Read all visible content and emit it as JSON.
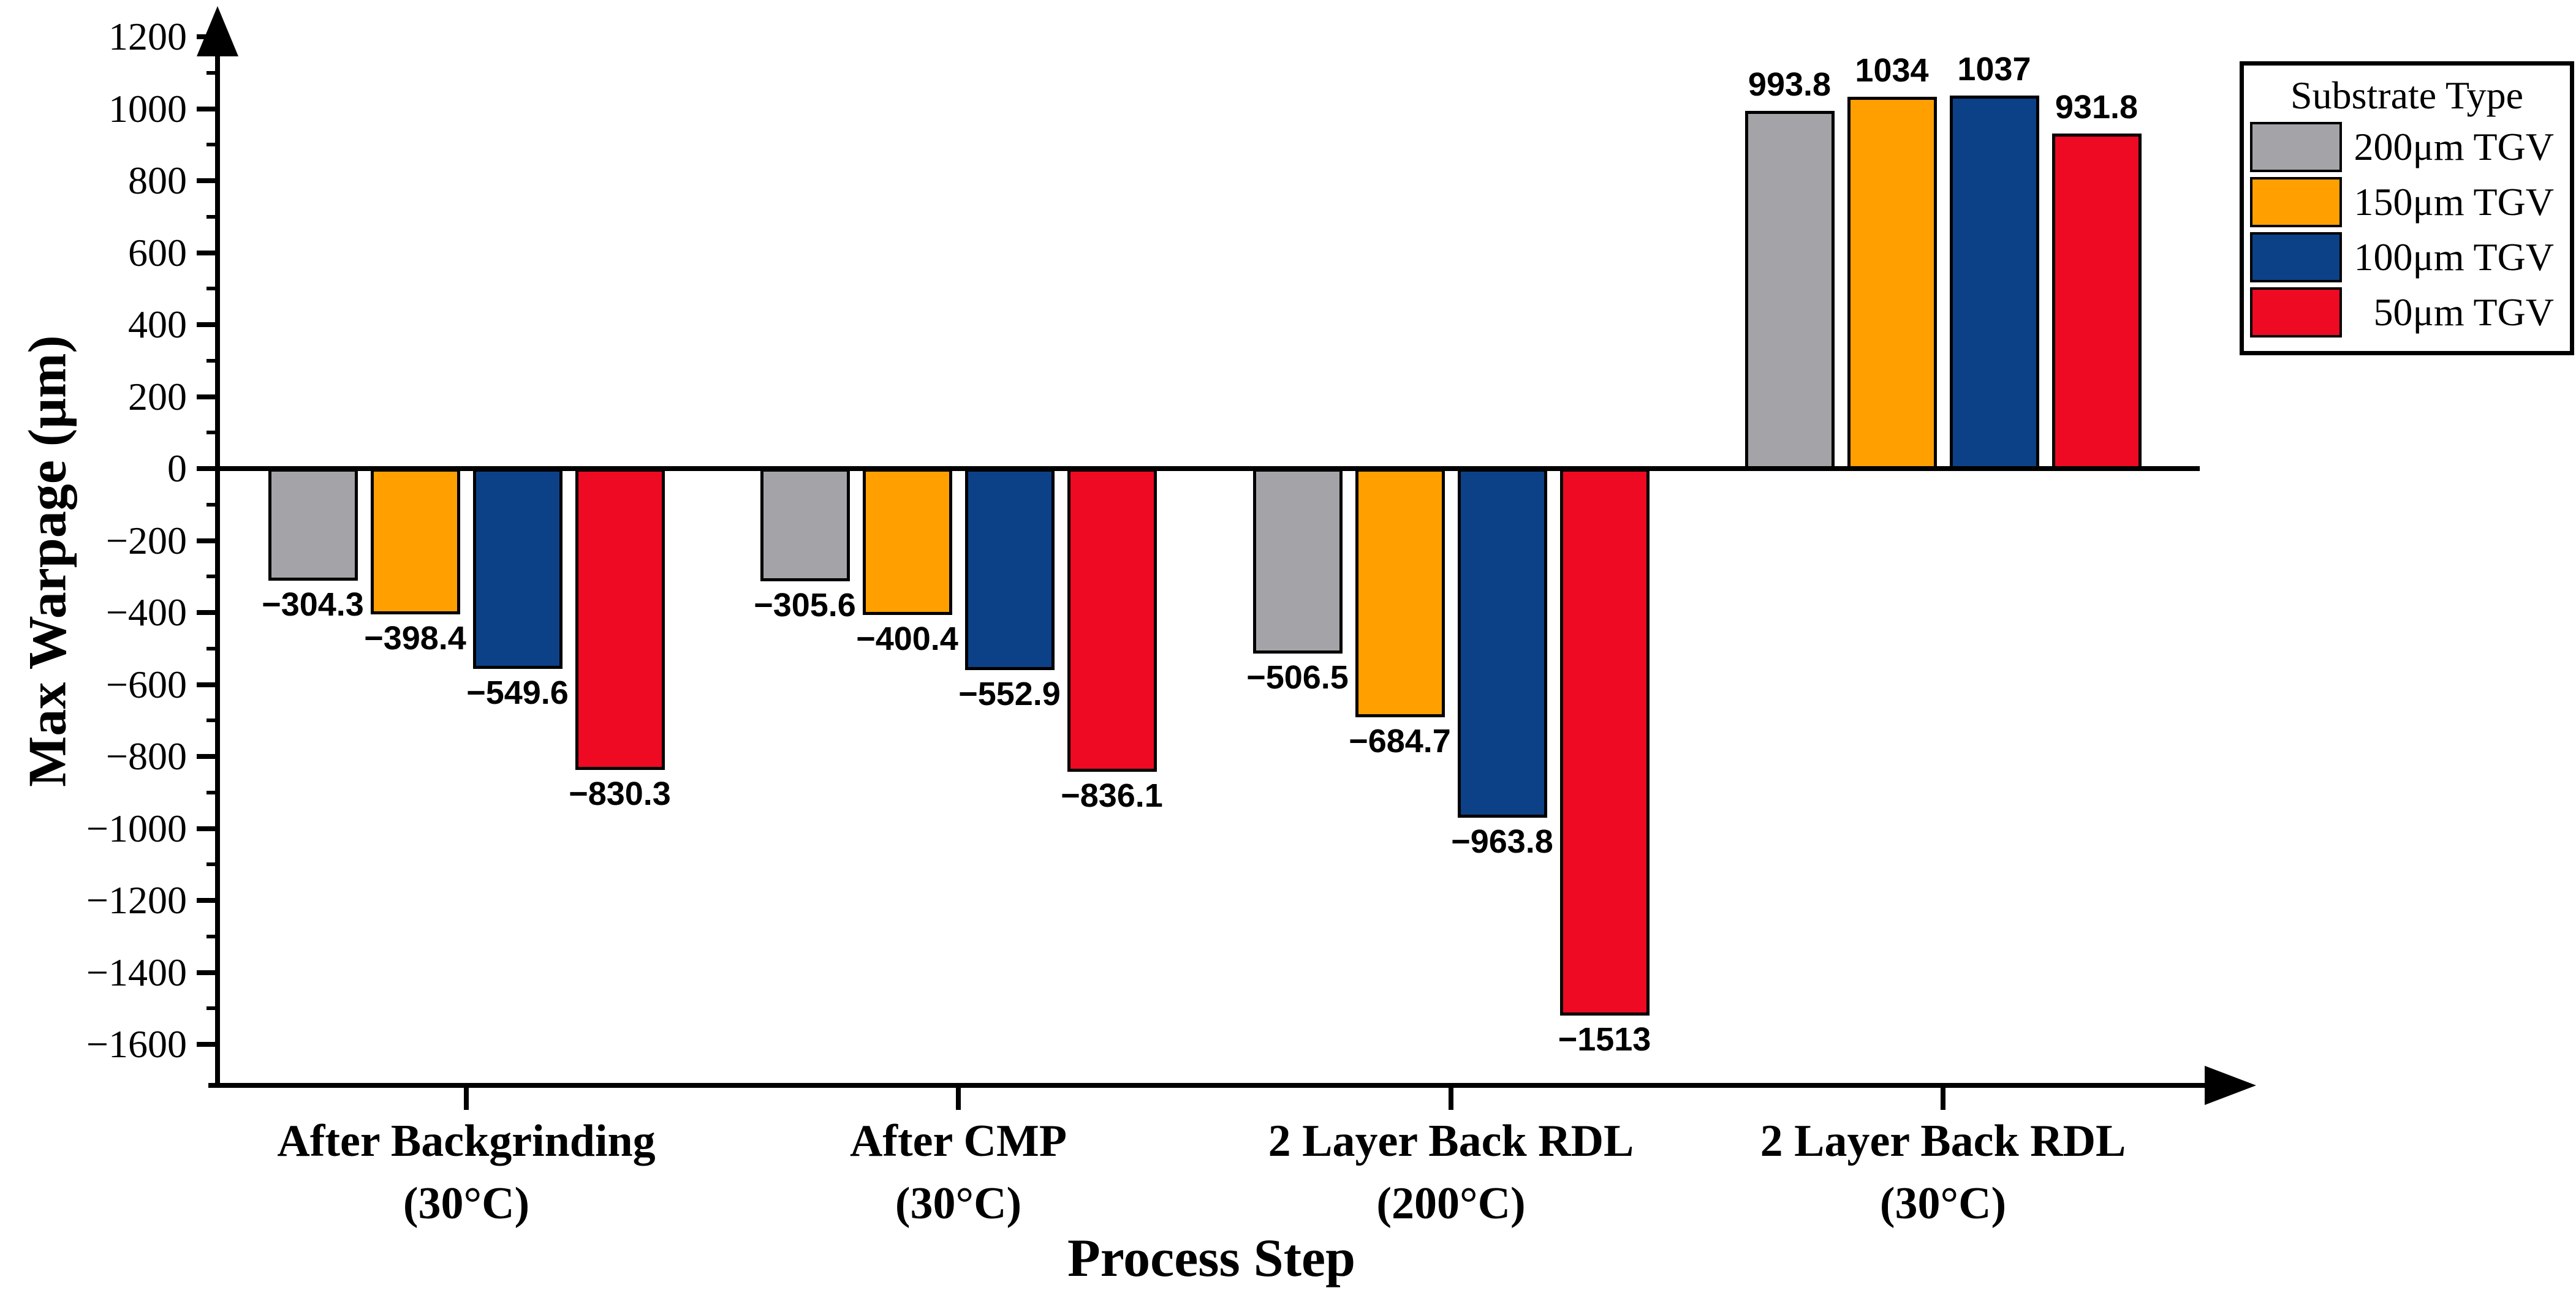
{
  "chart_data": {
    "type": "bar",
    "title": "",
    "xlabel": "Process Step",
    "ylabel": "Max Warpage (μm)",
    "categories": [
      [
        "After Backgrinding",
        "(30°C)"
      ],
      [
        "After CMP",
        "(30°C)"
      ],
      [
        "2 Layer Back RDL",
        "(200°C)"
      ],
      [
        "2 Layer Back RDL",
        "(30°C)"
      ]
    ],
    "series": [
      {
        "name": "200μm TGV",
        "color": "#A4A4A8",
        "values": [
          -304.3,
          -305.6,
          -506.5,
          993.8
        ],
        "value_labels": [
          "−304.3",
          "−305.6",
          "−506.5",
          "993.8"
        ]
      },
      {
        "name": "150μm TGV",
        "color": "#FFA000",
        "values": [
          -398.4,
          -400.4,
          -684.7,
          1034
        ],
        "value_labels": [
          "−398.4",
          "−400.4",
          "−684.7",
          "1034"
        ]
      },
      {
        "name": "100μm TGV",
        "color": "#0C4187",
        "values": [
          -549.6,
          -552.9,
          -963.8,
          1037
        ],
        "value_labels": [
          "−549.6",
          "−552.9",
          "−963.8",
          "1037"
        ]
      },
      {
        "name": "50μm TGV",
        "color": "#ED0A22",
        "values": [
          -830.3,
          -836.1,
          -1513,
          931.8
        ],
        "value_labels": [
          "−830.3",
          "−836.1",
          "−1513",
          "931.8"
        ]
      }
    ],
    "legend": {
      "title": "Substrate Type",
      "position": "top-right"
    },
    "y_axis": {
      "max_tick": 1200,
      "min_tick": -1600,
      "major_step": 200,
      "minor_step": 100,
      "tick_labels": [
        "1200",
        "1000",
        "800",
        "600",
        "400",
        "200",
        "0",
        "−200",
        "−400",
        "−600",
        "−800",
        "−1000",
        "−1200",
        "−1400",
        "−1600"
      ]
    },
    "axis_color": "#000000",
    "grid": false
  }
}
